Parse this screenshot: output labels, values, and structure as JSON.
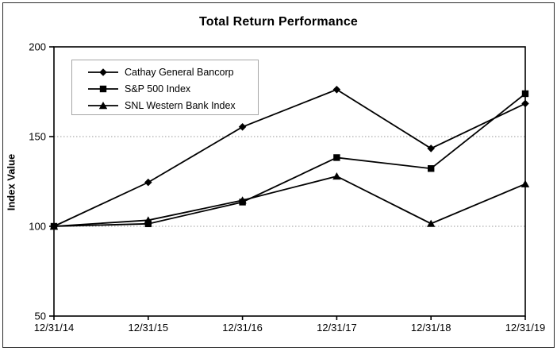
{
  "window": {
    "background": "#ffffff",
    "border_color": "#2b2b2b"
  },
  "chart_data": {
    "type": "line",
    "title": "Total Return Performance",
    "xlabel": "",
    "ylabel": "Index Value",
    "categories": [
      "12/31/14",
      "12/31/15",
      "12/31/16",
      "12/31/17",
      "12/31/18",
      "12/31/19"
    ],
    "series": [
      {
        "name": "Cathay General Bancorp",
        "marker": "diamond",
        "color": "#000000",
        "values": [
          100,
          124.5,
          155.4,
          176.2,
          143.4,
          168.4
        ]
      },
      {
        "name": "S&P 500 Index",
        "marker": "square",
        "color": "#000000",
        "values": [
          100,
          101.4,
          113.5,
          138.3,
          132.2,
          173.9
        ]
      },
      {
        "name": "SNL Western Bank Index",
        "marker": "triangle",
        "color": "#000000",
        "values": [
          100,
          103.4,
          114.5,
          127.9,
          101.5,
          123.6
        ]
      }
    ],
    "ylim": [
      50,
      200
    ],
    "yticks": [
      50,
      100,
      150,
      200
    ],
    "gridlines": [
      100,
      150
    ],
    "grid_style": "dotted",
    "grid_on": true,
    "legend_position": "top-left",
    "axis_color": "#000000",
    "gridline_color": "#999999",
    "legend_border_color": "#a6a6a6"
  }
}
